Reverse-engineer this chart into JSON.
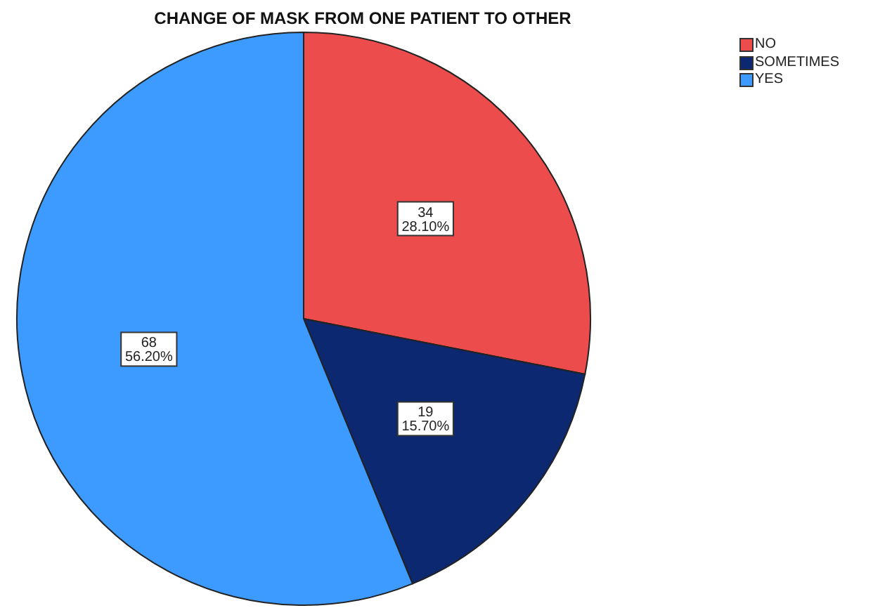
{
  "chart_data": {
    "type": "pie",
    "title": "CHANGE OF MASK FROM ONE PATIENT TO OTHER",
    "categories": [
      "NO",
      "SOMETIMES",
      "YES"
    ],
    "values": [
      34,
      19,
      68
    ],
    "colors": [
      "#ec4c4c",
      "#0b2870",
      "#3d9bff"
    ],
    "value_labels": [
      "34\n28.10%",
      "19\n15.70%",
      "68\n56.20%"
    ],
    "legend": "top right"
  }
}
